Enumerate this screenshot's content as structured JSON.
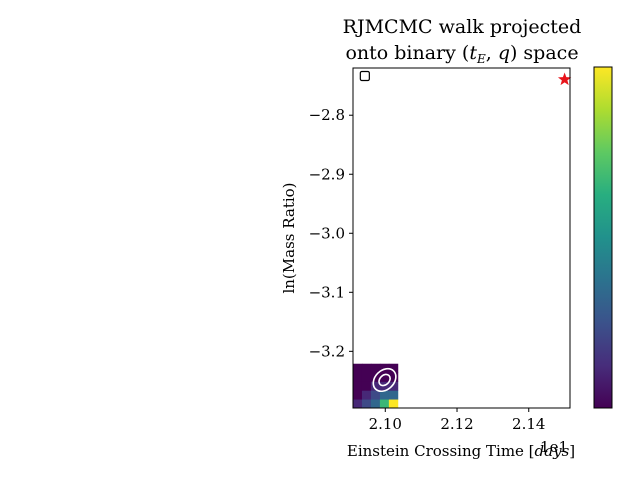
{
  "chart_data": {
    "type": "heatmap",
    "title_line1": "RJMCMC walk projected",
    "title_line2_prefix": "onto binary (",
    "title_t": "t",
    "title_sub": "E",
    "title_mid": ", ",
    "title_q": "q",
    "title_line2_suffix": ") space",
    "xlabel_prefix": "Einstein Crossing Time [",
    "xlabel_unit": "days",
    "xlabel_suffix": "]",
    "ylabel": "ln(Mass Ratio)",
    "x_offset_label": "1e1",
    "xlim": [
      2.091,
      2.1515
    ],
    "ylim": [
      -3.296,
      -2.72
    ],
    "x_ticks": [
      "2.10",
      "2.12",
      "2.14"
    ],
    "x_tick_values": [
      2.1,
      2.12,
      2.14
    ],
    "y_ticks": [
      "−2.8",
      "−2.9",
      "−3.0",
      "−3.1",
      "−3.2"
    ],
    "y_tick_values": [
      -2.8,
      -2.9,
      -3.0,
      -3.1,
      -3.2
    ],
    "heatmap": {
      "x_edges": [
        2.091,
        2.0935,
        2.096,
        2.0985,
        2.101,
        2.1035
      ],
      "y_edges": [
        -3.296,
        -3.281,
        -3.266,
        -3.251,
        -3.236,
        -3.221
      ],
      "counts": [
        [
          2,
          3,
          4,
          7,
          10
        ],
        [
          1,
          2,
          3,
          4,
          4
        ],
        [
          1,
          1,
          2,
          2,
          2
        ],
        [
          1,
          1,
          1,
          1,
          1
        ],
        [
          1,
          1,
          1,
          1,
          1
        ]
      ],
      "max": 10
    },
    "contour_ellipses": [
      {
        "cx": 2.0998,
        "cy": -3.2485,
        "rx": 0.0057,
        "ry": 0.0085,
        "label": "outer"
      },
      {
        "cx": 2.0998,
        "cy": -3.2485,
        "rx": 0.0028,
        "ry": 0.0042,
        "label": "inner"
      }
    ],
    "rotation_deg": -45,
    "markers": [
      {
        "kind": "star",
        "x": 2.15,
        "y": -2.7395,
        "color": "#e8141b"
      },
      {
        "kind": "square",
        "x": 2.0943,
        "y": -2.7335,
        "color": "#000000"
      }
    ],
    "colormap": "viridis",
    "grid": false,
    "colorbar": true
  }
}
